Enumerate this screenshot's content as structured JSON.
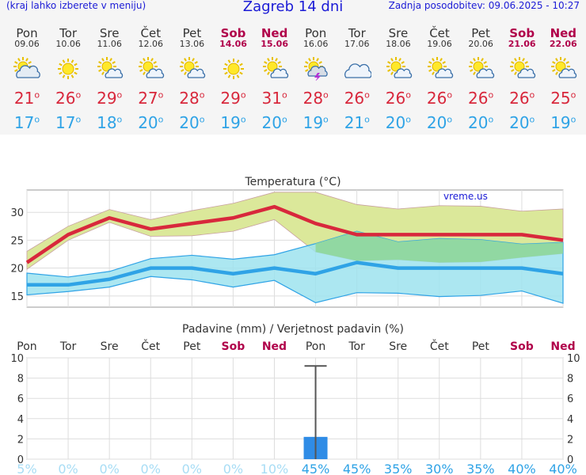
{
  "header": {
    "left": "(kraj lahko izberete v meniju)",
    "title": "Zagreb 14 dni",
    "right": "Zadnja posodobitev: 09.06.2025 - 10:27"
  },
  "days": [
    {
      "name": "Pon",
      "date": "09.06",
      "weekend": false,
      "icon": "partly-cloudy-icon",
      "tmax": "21",
      "tmin": "17"
    },
    {
      "name": "Tor",
      "date": "10.06",
      "weekend": false,
      "icon": "sun-icon",
      "tmax": "26",
      "tmin": "17"
    },
    {
      "name": "Sre",
      "date": "11.06",
      "weekend": false,
      "icon": "sun-cloud-icon",
      "tmax": "29",
      "tmin": "18"
    },
    {
      "name": "Čet",
      "date": "12.06",
      "weekend": false,
      "icon": "sun-cloud-icon",
      "tmax": "27",
      "tmin": "20"
    },
    {
      "name": "Pet",
      "date": "13.06",
      "weekend": false,
      "icon": "sun-cloud-icon",
      "tmax": "28",
      "tmin": "20"
    },
    {
      "name": "Sob",
      "date": "14.06",
      "weekend": true,
      "icon": "sun-icon",
      "tmax": "29",
      "tmin": "19"
    },
    {
      "name": "Ned",
      "date": "15.06",
      "weekend": true,
      "icon": "sun-cloud-icon",
      "tmax": "31",
      "tmin": "20"
    },
    {
      "name": "Pon",
      "date": "16.06",
      "weekend": false,
      "icon": "thunderstorm-icon",
      "tmax": "28",
      "tmin": "19"
    },
    {
      "name": "Tor",
      "date": "17.06",
      "weekend": false,
      "icon": "cloud-icon",
      "tmax": "26",
      "tmin": "21"
    },
    {
      "name": "Sre",
      "date": "18.06",
      "weekend": false,
      "icon": "sun-cloud-icon",
      "tmax": "26",
      "tmin": "20"
    },
    {
      "name": "Čet",
      "date": "19.06",
      "weekend": false,
      "icon": "sun-cloud-icon",
      "tmax": "26",
      "tmin": "20"
    },
    {
      "name": "Pet",
      "date": "20.06",
      "weekend": false,
      "icon": "sun-cloud-icon",
      "tmax": "26",
      "tmin": "20"
    },
    {
      "name": "Sob",
      "date": "21.06",
      "weekend": true,
      "icon": "sun-cloud-icon",
      "tmax": "26",
      "tmin": "20"
    },
    {
      "name": "Ned",
      "date": "22.06",
      "weekend": true,
      "icon": "sun-cloud-icon",
      "tmax": "25",
      "tmin": "19"
    }
  ],
  "degree_symbol": "o",
  "colors": {
    "weekend": "#b0004a",
    "tmax": "#d8283c",
    "tmin": "#2fa3e6",
    "max_band": "#dbe89a",
    "min_band": "#9ee3ef",
    "overlap": "#8fd69b",
    "precip_bar": "#2f8ce6",
    "pct": "#2fa3e6"
  },
  "chart_data": [
    {
      "type": "line",
      "title": "Temperatura (°C)",
      "watermark": "vreme.us",
      "ylim": [
        13,
        34
      ],
      "yticks": [
        15,
        20,
        25,
        30
      ],
      "series": [
        {
          "values": [
            21,
            26,
            29,
            27,
            28,
            29,
            31,
            28,
            26,
            26,
            26,
            26,
            26,
            25
          ]
        },
        {
          "values": [
            17,
            17,
            18,
            20,
            20,
            19,
            20,
            19,
            21,
            20,
            20,
            20,
            20,
            19
          ]
        }
      ],
      "bands": [
        {
          "upper": [
            23,
            27.5,
            30.5,
            28.7,
            30.3,
            31.6,
            33.6,
            33.6,
            31.4,
            30.6,
            31.2,
            31.1,
            30.2,
            30.6
          ],
          "lower": [
            19.8,
            25,
            28.2,
            25.7,
            25.8,
            26.6,
            28.7,
            22.9,
            21.3,
            21.5,
            21,
            21.1,
            21.9,
            22.6
          ]
        },
        {
          "upper": [
            19.1,
            18.4,
            19.4,
            21.7,
            22.3,
            21.6,
            22.4,
            24.4,
            26.6,
            24.7,
            25.3,
            25.1,
            24.3,
            24.6
          ],
          "lower": [
            15.2,
            15.8,
            16.6,
            18.5,
            17.9,
            16.6,
            17.8,
            13.8,
            15.6,
            15.5,
            14.9,
            15.1,
            15.9,
            13.7
          ]
        }
      ]
    },
    {
      "type": "bar",
      "title": "Padavine (mm) / Verjetnost padavin (%)",
      "categories": [
        "Pon",
        "Tor",
        "Sre",
        "Čet",
        "Pet",
        "Sob",
        "Ned",
        "Pon",
        "Tor",
        "Sre",
        "Čet",
        "Pet",
        "Sob",
        "Ned"
      ],
      "ylim": [
        0,
        10
      ],
      "yticks": [
        0,
        2,
        4,
        6,
        8,
        10
      ],
      "values": [
        0,
        0,
        0,
        0,
        0,
        0,
        0,
        2.2,
        0,
        0,
        0,
        0,
        0,
        0
      ],
      "max_values": [
        0,
        0,
        0,
        0,
        0,
        0,
        0,
        9.2,
        0,
        0,
        0,
        0,
        0,
        0
      ],
      "probability": [
        "5%",
        "0%",
        "0%",
        "0%",
        "0%",
        "0%",
        "10%",
        "45%",
        "45%",
        "35%",
        "30%",
        "35%",
        "40%",
        "40%"
      ]
    }
  ]
}
